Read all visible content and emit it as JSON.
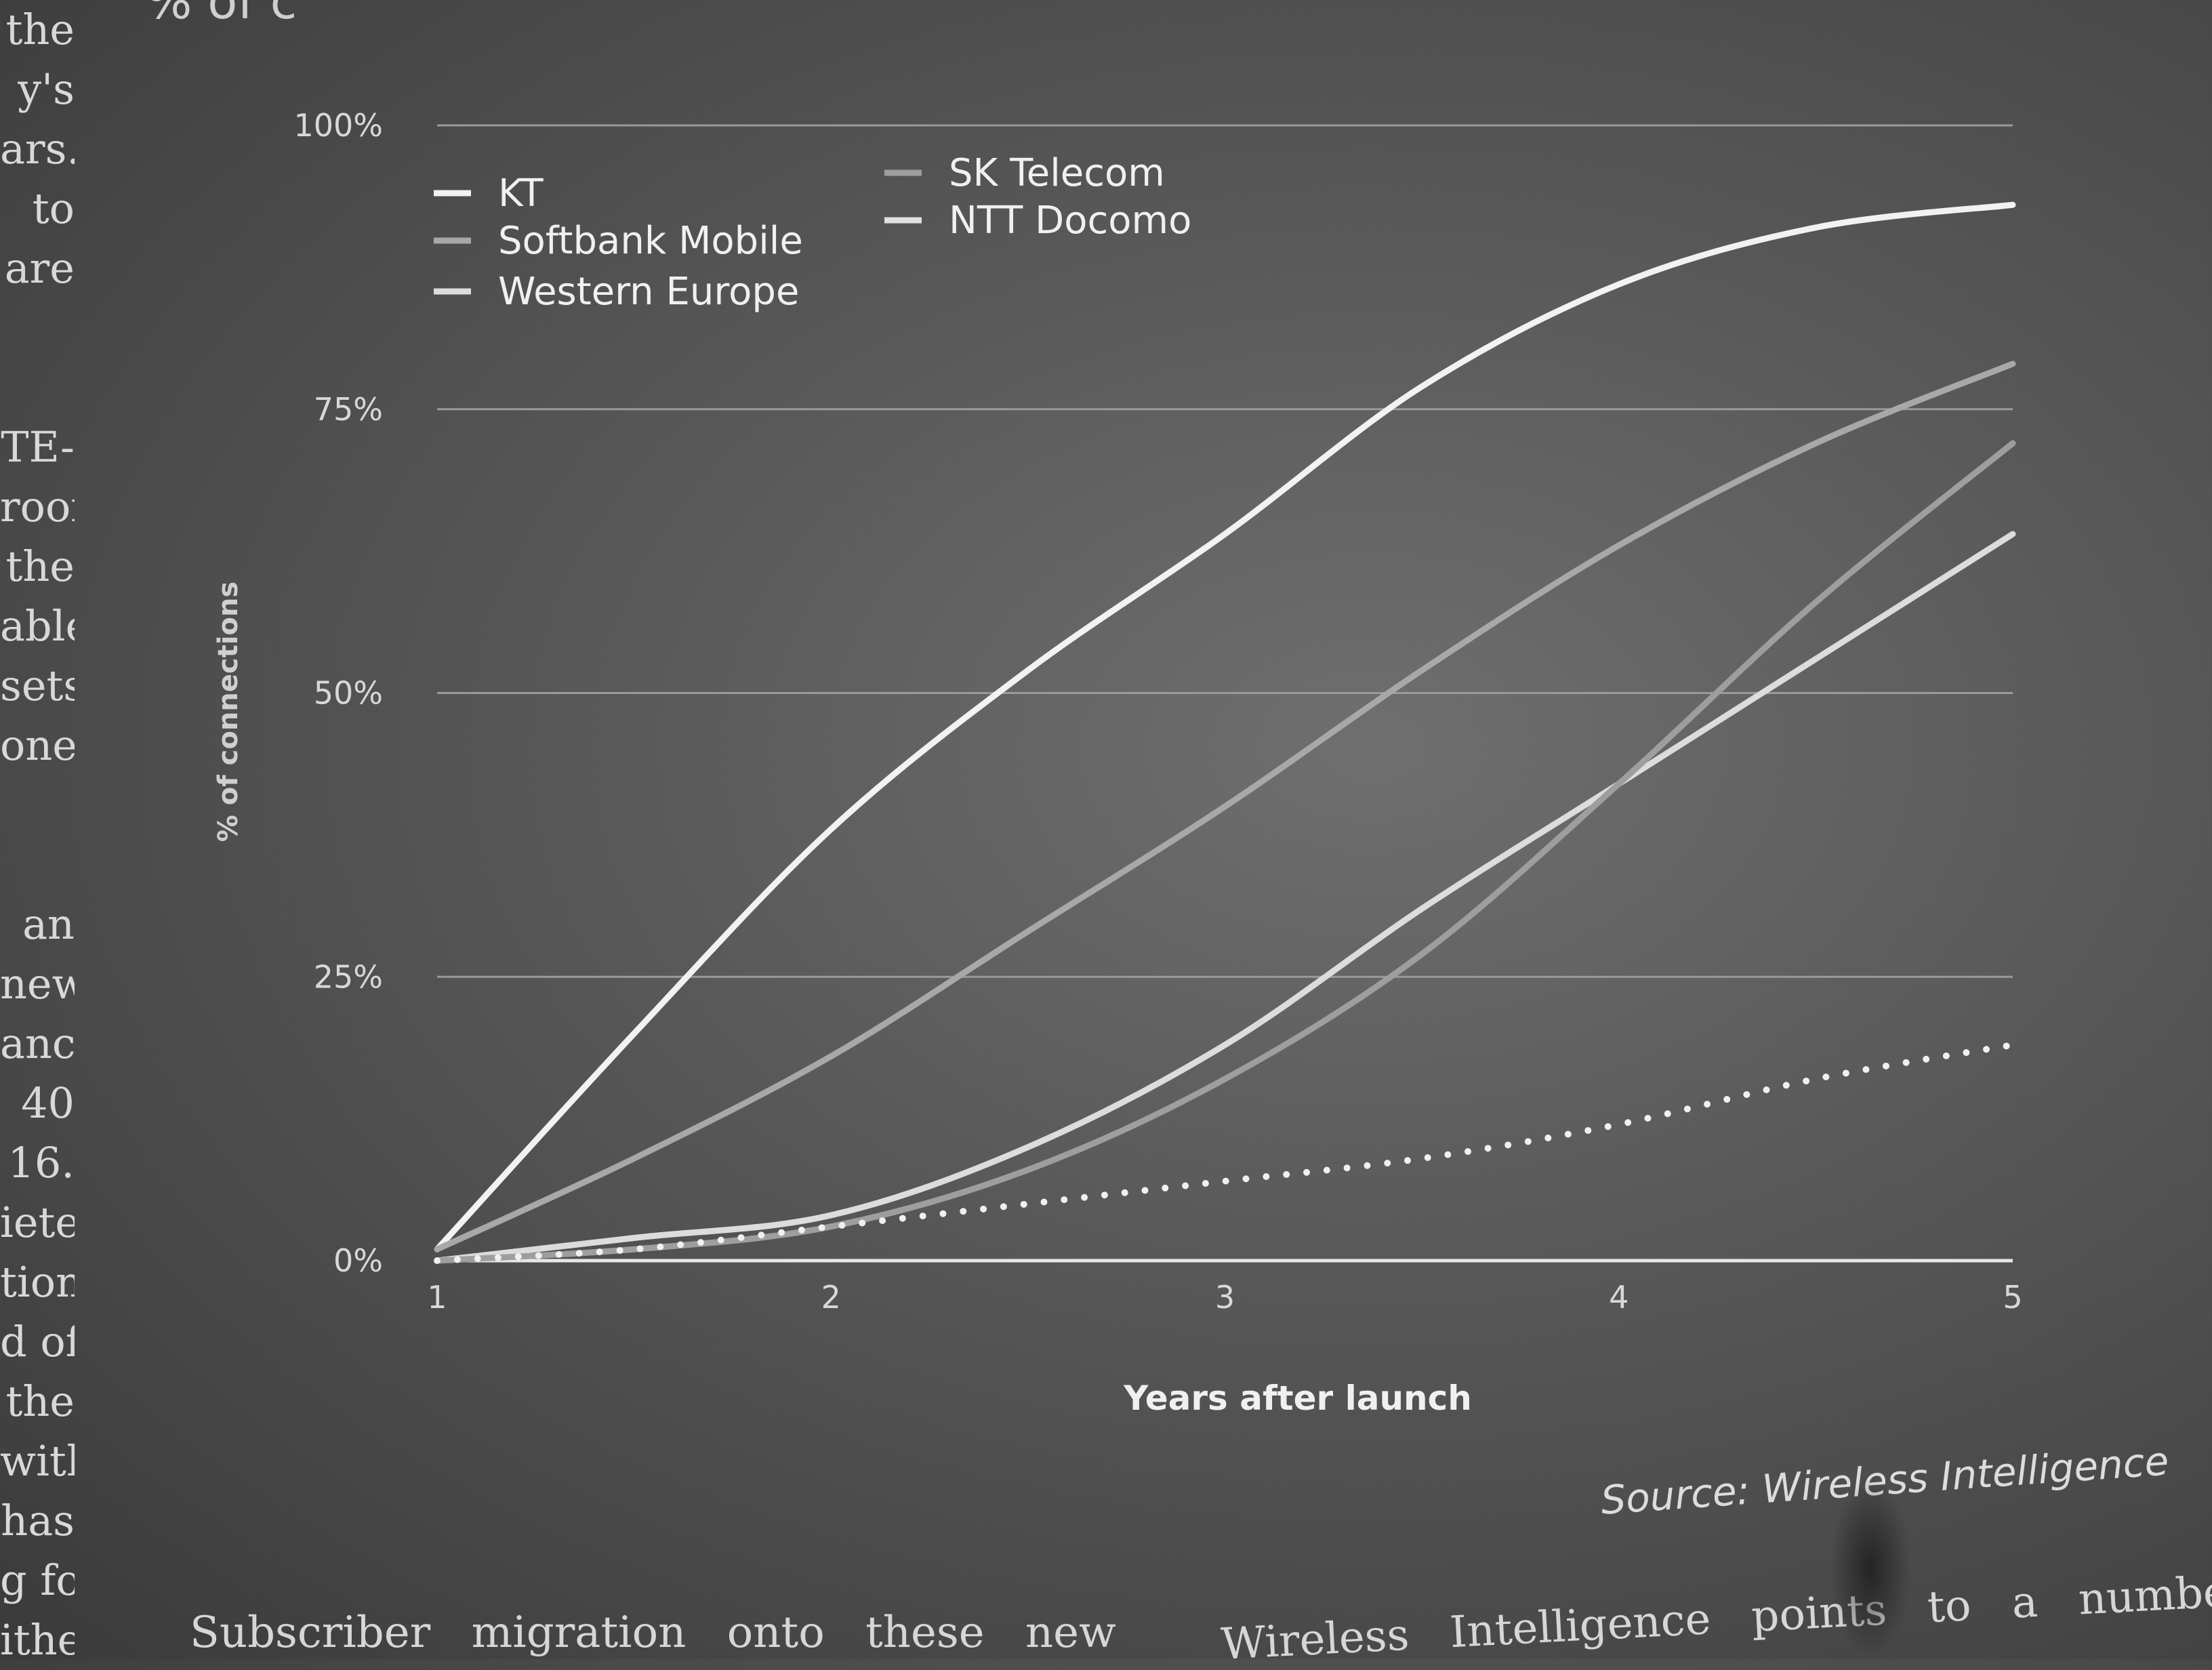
{
  "page": {
    "left_column_fragments": [
      "the",
      "y's",
      "ars.",
      "to",
      "are",
      "",
      "",
      "TE-",
      "roof",
      "the",
      "able",
      "sets",
      "one",
      "",
      "",
      "an",
      "new",
      "ance",
      "40",
      "16.",
      "iete",
      "tion",
      "d of",
      "the",
      "with",
      "has",
      "g for",
      "ither"
    ],
    "top_clip": "% of c",
    "source": "Source: Wireless Intelligence",
    "bottom_left": "Subscriber migration onto these new",
    "bottom_right": "Wireless Intelligence points to a number"
  },
  "chart_data": {
    "type": "line",
    "title": "",
    "xlabel": "Years after launch",
    "ylabel": "% of connections",
    "x_ticks": [
      "1",
      "2",
      "3",
      "4",
      "5"
    ],
    "y_ticks": [
      "0%",
      "25%",
      "50%",
      "75%",
      "100%"
    ],
    "xlim": [
      1,
      5
    ],
    "ylim": [
      0,
      100
    ],
    "grid": true,
    "legend_position": "top-left",
    "series": [
      {
        "name": "KT",
        "color": "#f2f2f2",
        "dash": "solid",
        "x": [
          1,
          1.5,
          2,
          2.5,
          3,
          3.5,
          4,
          4.5,
          5
        ],
        "y": [
          1,
          20,
          38,
          52,
          64,
          77,
          86,
          91,
          93
        ]
      },
      {
        "name": "Softbank Mobile",
        "color": "#a8a8a8",
        "dash": "solid",
        "x": [
          1,
          1.5,
          2,
          2.5,
          3,
          3.5,
          4,
          4.5,
          5
        ],
        "y": [
          1,
          9,
          18,
          29,
          40,
          52,
          63,
          72,
          79
        ]
      },
      {
        "name": "Western Europe",
        "color": "#dcdcdc",
        "dash": "solid",
        "x": [
          1,
          1.5,
          2,
          2.5,
          3,
          3.5,
          4,
          4.5,
          5
        ],
        "y": [
          0,
          2,
          4,
          10,
          19,
          31,
          42,
          53,
          64
        ]
      },
      {
        "name": "SK Telecom",
        "color": "#9e9e9e",
        "dash": "solid",
        "x": [
          1,
          1.5,
          2,
          2.5,
          3,
          3.5,
          4,
          4.5,
          5
        ],
        "y": [
          0,
          1,
          3,
          8,
          16,
          27,
          42,
          58,
          72
        ]
      },
      {
        "name": "NTT Docomo",
        "color": "#f0f0f0",
        "dash": "dotted",
        "x": [
          1,
          1.5,
          2,
          2.5,
          3,
          3.5,
          4,
          4.5,
          5
        ],
        "y": [
          0,
          1,
          3,
          5,
          7,
          9,
          12,
          16,
          19
        ]
      }
    ]
  }
}
